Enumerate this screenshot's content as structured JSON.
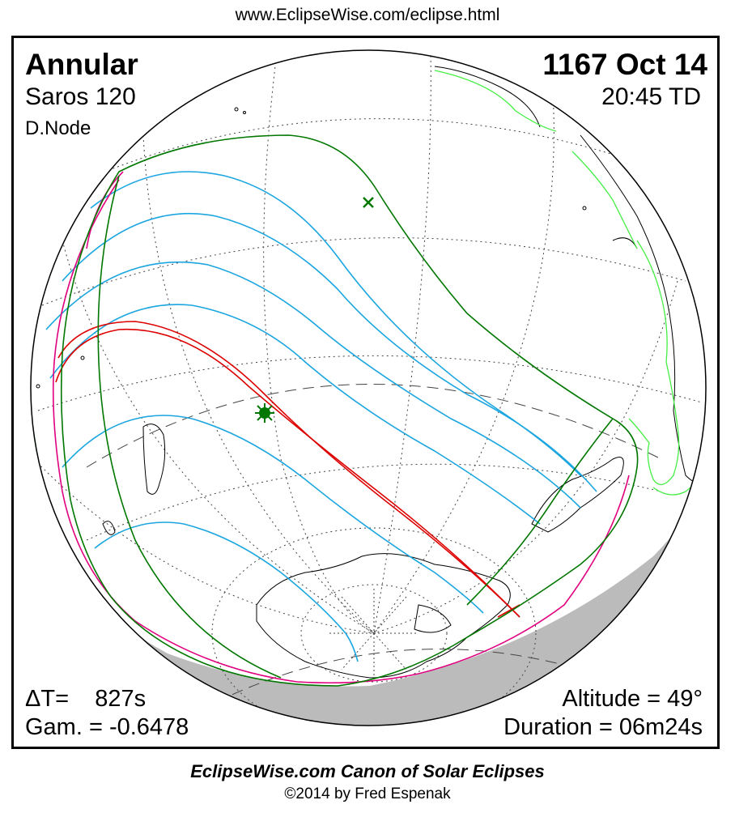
{
  "header": {
    "url": "www.EclipseWise.com/eclipse.html"
  },
  "eclipse": {
    "type": "Annular",
    "date": "1167 Oct 14",
    "saros": "Saros 120",
    "time": "20:45 TD",
    "node": "D.Node",
    "delta_t": "ΔT=    827s",
    "gamma": "Gam. = -0.6478",
    "altitude": "Altitude = 49°",
    "duration": "Duration = 06m24s"
  },
  "footer": {
    "canon": "EclipseWise.com Canon of Solar Eclipses",
    "copyright": "©2014 by Fred Espenak"
  },
  "colors": {
    "central_path": "#dd0000",
    "penumbral_limits": "#007700",
    "magnitude_lines": "#1ba6e0",
    "rise_set_curves": "#e0007f",
    "night_shading": "#bbbbbb",
    "coastlines": "#000000",
    "highlight_coast": "#44ee44",
    "grid": "#444444"
  }
}
